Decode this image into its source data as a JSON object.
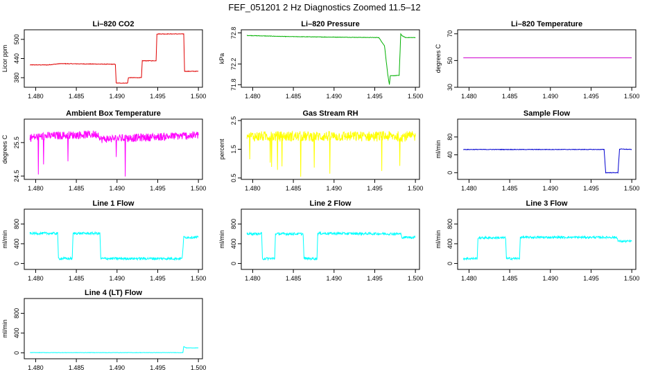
{
  "title": "FEF_051201  2 Hz Diagnostics Zoomed 11.5–12",
  "chart_data": [
    {
      "type": "line",
      "title": "Li–820 CO2",
      "ylabel": "Licor ppm",
      "xlim": [
        1.4786,
        1.5005
      ],
      "ylim": [
        350,
        530
      ],
      "xticks": [
        1.48,
        1.485,
        1.49,
        1.495,
        1.5
      ],
      "xtick_labels": [
        "1.480",
        "1.485",
        "1.490",
        "1.495",
        "1.500"
      ],
      "yticks": [
        380,
        440,
        500
      ],
      "ytick_labels": [
        "380",
        "440",
        "500"
      ],
      "series": [
        {
          "name": "CO2",
          "color": "#e00000",
          "noise": 0.8,
          "x": [
            1.4793,
            1.4815,
            1.483,
            1.4898,
            1.4899,
            1.4913,
            1.4914,
            1.493,
            1.4931,
            1.4948,
            1.4949,
            1.4982,
            1.4983,
            1.5
          ],
          "y": [
            420,
            420,
            424,
            422,
            363,
            363,
            380,
            380,
            433,
            433,
            517,
            517,
            400,
            400
          ]
        }
      ]
    },
    {
      "type": "line",
      "title": "Li–820 Pressure",
      "ylabel": "kPa",
      "xlim": [
        1.4786,
        1.5005
      ],
      "ylim": [
        71.75,
        72.86
      ],
      "xticks": [
        1.48,
        1.485,
        1.49,
        1.495,
        1.5
      ],
      "xtick_labels": [
        "1.480",
        "1.485",
        "1.490",
        "1.495",
        "1.500"
      ],
      "yticks": [
        71.8,
        72.2,
        72.8
      ],
      "ytick_labels": [
        "71.8",
        "72.2",
        "72.8"
      ],
      "series": [
        {
          "name": "Pressure",
          "color": "#00b000",
          "noise": 0.004,
          "x": [
            1.4793,
            1.484,
            1.489,
            1.4955,
            1.4962,
            1.4966,
            1.4968,
            1.4969,
            1.498,
            1.4982,
            1.4984,
            1.4988,
            1.5
          ],
          "y": [
            72.75,
            72.73,
            72.72,
            72.71,
            72.55,
            72.0,
            71.8,
            71.97,
            71.98,
            72.78,
            72.74,
            72.71,
            72.71
          ]
        }
      ]
    },
    {
      "type": "line",
      "title": "Li–820 Temperature",
      "ylabel": "degrees C",
      "xlim": [
        1.4786,
        1.5005
      ],
      "ylim": [
        30,
        73
      ],
      "xticks": [
        1.48,
        1.485,
        1.49,
        1.495,
        1.5
      ],
      "xtick_labels": [
        "1.480",
        "1.485",
        "1.490",
        "1.495",
        "1.500"
      ],
      "yticks": [
        30,
        50,
        70
      ],
      "ytick_labels": [
        "30",
        "50",
        "70"
      ],
      "series": [
        {
          "name": "Temperature",
          "color": "#d000d0",
          "noise": 0,
          "x": [
            1.4793,
            1.5
          ],
          "y": [
            52,
            52
          ]
        }
      ]
    },
    {
      "type": "line",
      "title": "Ambient Box Temperature",
      "ylabel": "degrees C",
      "xlim": [
        1.4786,
        1.5005
      ],
      "ylim": [
        24.4,
        26.2
      ],
      "xticks": [
        1.48,
        1.485,
        1.49,
        1.495,
        1.5
      ],
      "xtick_labels": [
        "1.480",
        "1.485",
        "1.490",
        "1.495",
        "1.500"
      ],
      "yticks": [
        24.5,
        25.5
      ],
      "ytick_labels": [
        "24.5",
        "25.5"
      ],
      "series": [
        {
          "name": "Ambient",
          "color": "#ff00ff",
          "noise": 0.12,
          "x": [
            1.4793,
            1.4817,
            1.4818,
            1.4878,
            1.4879,
            1.5
          ],
          "y": [
            25.65,
            25.7,
            25.7,
            25.75,
            25.6,
            25.72
          ]
        }
      ]
    },
    {
      "type": "line",
      "title": "Gas Stream RH",
      "ylabel": "percent",
      "xlim": [
        1.4786,
        1.5005
      ],
      "ylim": [
        0.45,
        2.55
      ],
      "xticks": [
        1.48,
        1.485,
        1.49,
        1.495,
        1.5
      ],
      "xtick_labels": [
        "1.480",
        "1.485",
        "1.490",
        "1.495",
        "1.500"
      ],
      "yticks": [
        0.5,
        1.5,
        2.5
      ],
      "ytick_labels": [
        "0.5",
        "1.5",
        "2.5"
      ],
      "series": [
        {
          "name": "RH",
          "color": "#ffff00",
          "noise": 0.18,
          "x": [
            1.4793,
            1.5
          ],
          "y": [
            1.95,
            1.95
          ]
        }
      ]
    },
    {
      "type": "line",
      "title": "Sample Flow",
      "ylabel": "ml/min",
      "xlim": [
        1.4786,
        1.5005
      ],
      "ylim": [
        -15,
        120
      ],
      "xticks": [
        1.48,
        1.485,
        1.49,
        1.495,
        1.5
      ],
      "xtick_labels": [
        "1.480",
        "1.485",
        "1.490",
        "1.495",
        "1.500"
      ],
      "yticks": [
        0,
        40,
        80
      ],
      "ytick_labels": [
        "0",
        "40",
        "80"
      ],
      "series": [
        {
          "name": "Sample Flow",
          "color": "#0000d0",
          "noise": 0.6,
          "x": [
            1.4793,
            1.4966,
            1.4968,
            1.4983,
            1.4985,
            1.5
          ],
          "y": [
            52,
            52,
            0,
            0,
            53,
            52
          ]
        }
      ]
    },
    {
      "type": "line",
      "title": "Line 1 Flow",
      "ylabel": "ml/min",
      "xlim": [
        1.4786,
        1.5005
      ],
      "ylim": [
        -120,
        1100
      ],
      "xticks": [
        1.48,
        1.485,
        1.49,
        1.495,
        1.5
      ],
      "xtick_labels": [
        "1.480",
        "1.485",
        "1.490",
        "1.495",
        "1.500"
      ],
      "yticks": [
        0,
        400,
        800
      ],
      "ytick_labels": [
        "0",
        "400",
        "800"
      ],
      "series": [
        {
          "name": "Line 1",
          "color": "#00ffff",
          "noise": 25,
          "x": [
            1.4793,
            1.4827,
            1.4828,
            1.4845,
            1.4846,
            1.4879,
            1.488,
            1.498,
            1.4982,
            1.5
          ],
          "y": [
            610,
            610,
            100,
            100,
            610,
            610,
            100,
            100,
            530,
            530
          ]
        }
      ]
    },
    {
      "type": "line",
      "title": "Line 2 Flow",
      "ylabel": "ml/min",
      "xlim": [
        1.4786,
        1.5005
      ],
      "ylim": [
        -120,
        1100
      ],
      "xticks": [
        1.48,
        1.485,
        1.49,
        1.495,
        1.5
      ],
      "xtick_labels": [
        "1.480",
        "1.485",
        "1.490",
        "1.495",
        "1.500"
      ],
      "yticks": [
        0,
        400,
        800
      ],
      "ytick_labels": [
        "0",
        "400",
        "800"
      ],
      "series": [
        {
          "name": "Line 2",
          "color": "#00ffff",
          "noise": 25,
          "x": [
            1.4793,
            1.4811,
            1.4812,
            1.4827,
            1.4828,
            1.4862,
            1.4863,
            1.4879,
            1.488,
            1.4982,
            1.4983,
            1.5
          ],
          "y": [
            600,
            600,
            100,
            100,
            600,
            600,
            100,
            100,
            610,
            600,
            530,
            530
          ]
        }
      ]
    },
    {
      "type": "line",
      "title": "Line 3 Flow",
      "ylabel": "ml/min",
      "xlim": [
        1.4786,
        1.5005
      ],
      "ylim": [
        -120,
        1100
      ],
      "xticks": [
        1.48,
        1.485,
        1.49,
        1.495,
        1.5
      ],
      "xtick_labels": [
        "1.480",
        "1.485",
        "1.490",
        "1.495",
        "1.500"
      ],
      "yticks": [
        0,
        400,
        800
      ],
      "ytick_labels": [
        "0",
        "400",
        "800"
      ],
      "series": [
        {
          "name": "Line 3",
          "color": "#00ffff",
          "noise": 22,
          "x": [
            1.4793,
            1.481,
            1.4811,
            1.4845,
            1.4846,
            1.4862,
            1.4863,
            1.4982,
            1.4983,
            1.5
          ],
          "y": [
            100,
            100,
            520,
            520,
            100,
            100,
            530,
            530,
            450,
            450
          ]
        }
      ]
    },
    {
      "type": "line",
      "title": "Line 4 (LT) Flow",
      "ylabel": "ml/min",
      "xlim": [
        1.4786,
        1.5005
      ],
      "ylim": [
        -120,
        1100
      ],
      "xticks": [
        1.48,
        1.485,
        1.49,
        1.495,
        1.5
      ],
      "xtick_labels": [
        "1.480",
        "1.485",
        "1.490",
        "1.495",
        "1.500"
      ],
      "yticks": [
        0,
        400,
        800
      ],
      "ytick_labels": [
        "0",
        "400",
        "800"
      ],
      "series": [
        {
          "name": "Line 4",
          "color": "#00ffff",
          "noise": 3,
          "x": [
            1.4793,
            1.4981,
            1.4982,
            1.4985,
            1.5
          ],
          "y": [
            5,
            5,
            130,
            100,
            100
          ]
        }
      ]
    }
  ]
}
